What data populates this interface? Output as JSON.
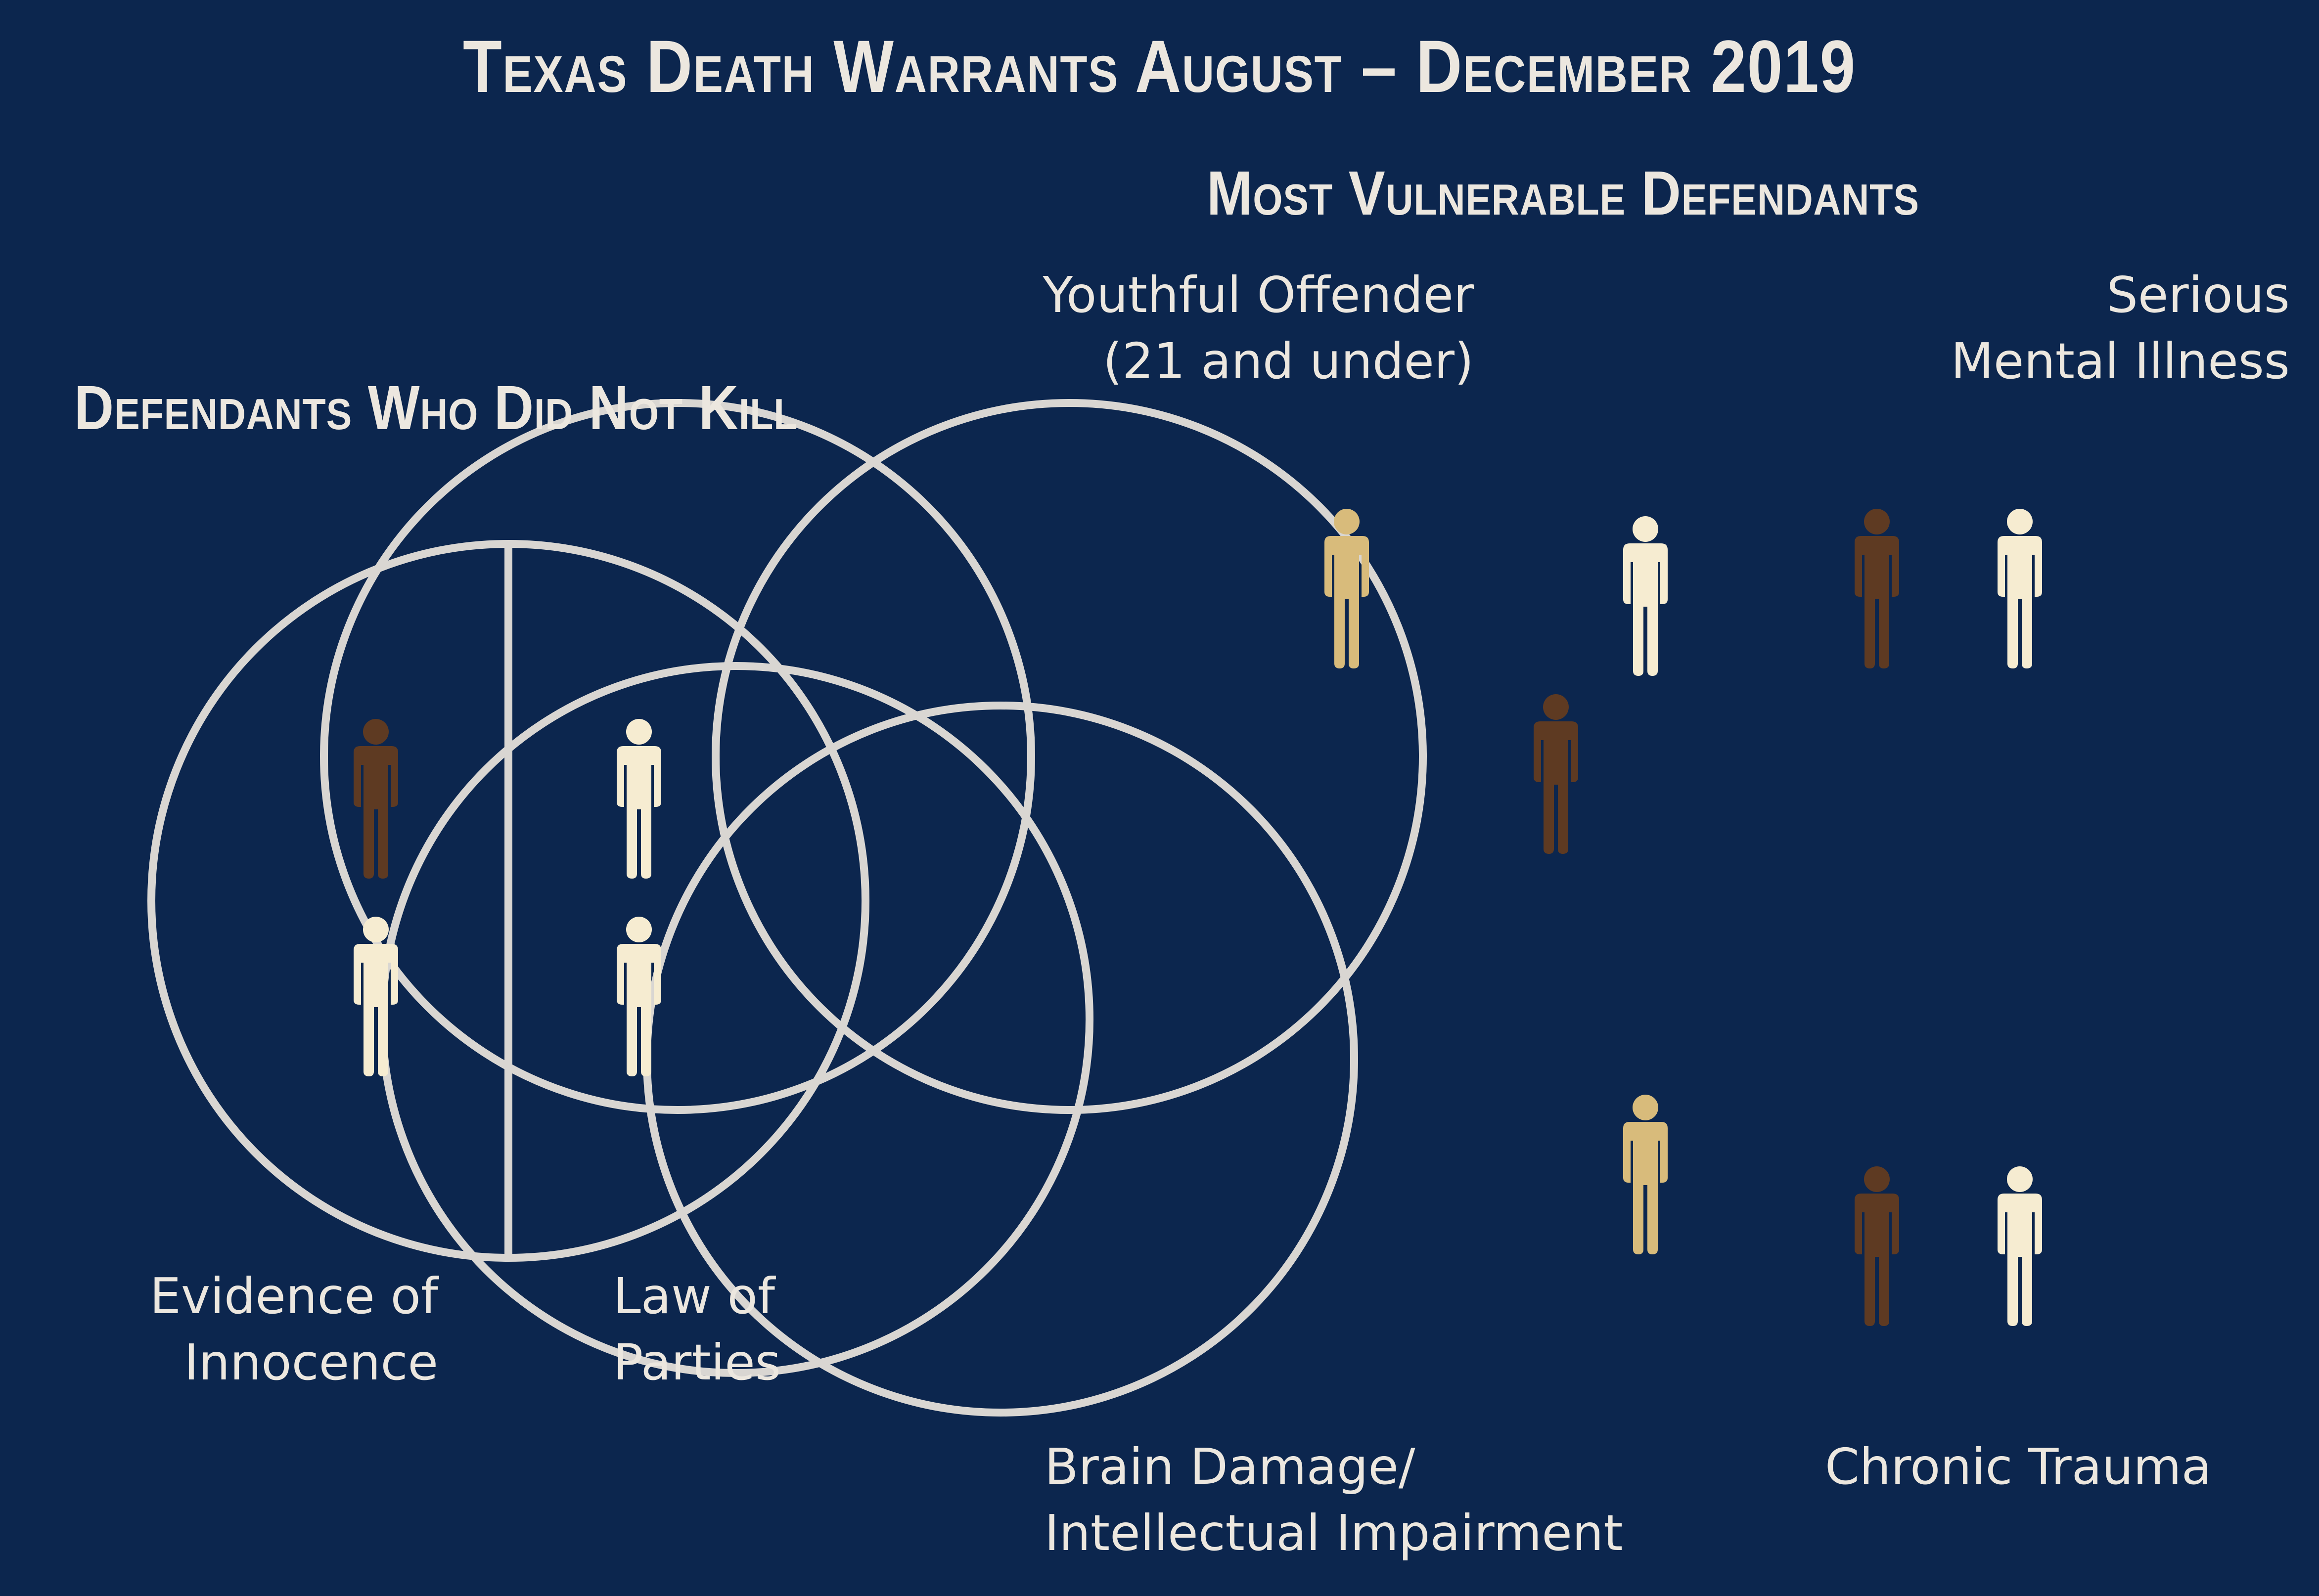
{
  "title": "Texas Death Warrants August – December 2019",
  "colors": {
    "background": "#0c264e",
    "circle_stroke": "#d9d6d2",
    "text": "#ece7df",
    "figure_dark": "#5e3a22",
    "figure_tan": "#d8bb7b",
    "figure_light": "#f6ecd1"
  },
  "left_panel": {
    "title": "Defendants Who Did Not Kill",
    "categories": [
      {
        "label_lines": [
          "Evidence of",
          "Innocence"
        ],
        "figures": [
          "dark",
          "light"
        ]
      },
      {
        "label_lines": [
          "Law of",
          "Parties"
        ],
        "figures": [
          "light",
          "light"
        ]
      }
    ]
  },
  "right_panel": {
    "title": "Most Vulnerable Defendants",
    "sets": [
      {
        "key": "youthful",
        "label_lines": [
          "Youthful Offender",
          "(21 and under)"
        ]
      },
      {
        "key": "mental",
        "label_lines": [
          "Serious",
          "Mental Illness"
        ]
      },
      {
        "key": "brain",
        "label_lines": [
          "Brain Damage/",
          "Intellectual Impairment"
        ]
      },
      {
        "key": "trauma",
        "label_lines": [
          "Chronic Trauma"
        ]
      }
    ],
    "figure_groups": [
      {
        "sets": [
          "youthful"
        ],
        "figures": [
          "tan"
        ]
      },
      {
        "sets": [
          "youthful",
          "mental"
        ],
        "figures": [
          "light"
        ]
      },
      {
        "sets": [
          "youthful",
          "mental",
          "brain"
        ],
        "figures": [
          "dark"
        ]
      },
      {
        "sets": [
          "mental"
        ],
        "figures": [
          "dark",
          "light"
        ]
      },
      {
        "sets": [
          "brain",
          "trauma"
        ],
        "figures": [
          "tan"
        ]
      },
      {
        "sets": [
          "trauma"
        ],
        "figures": [
          "dark",
          "light"
        ]
      }
    ]
  }
}
